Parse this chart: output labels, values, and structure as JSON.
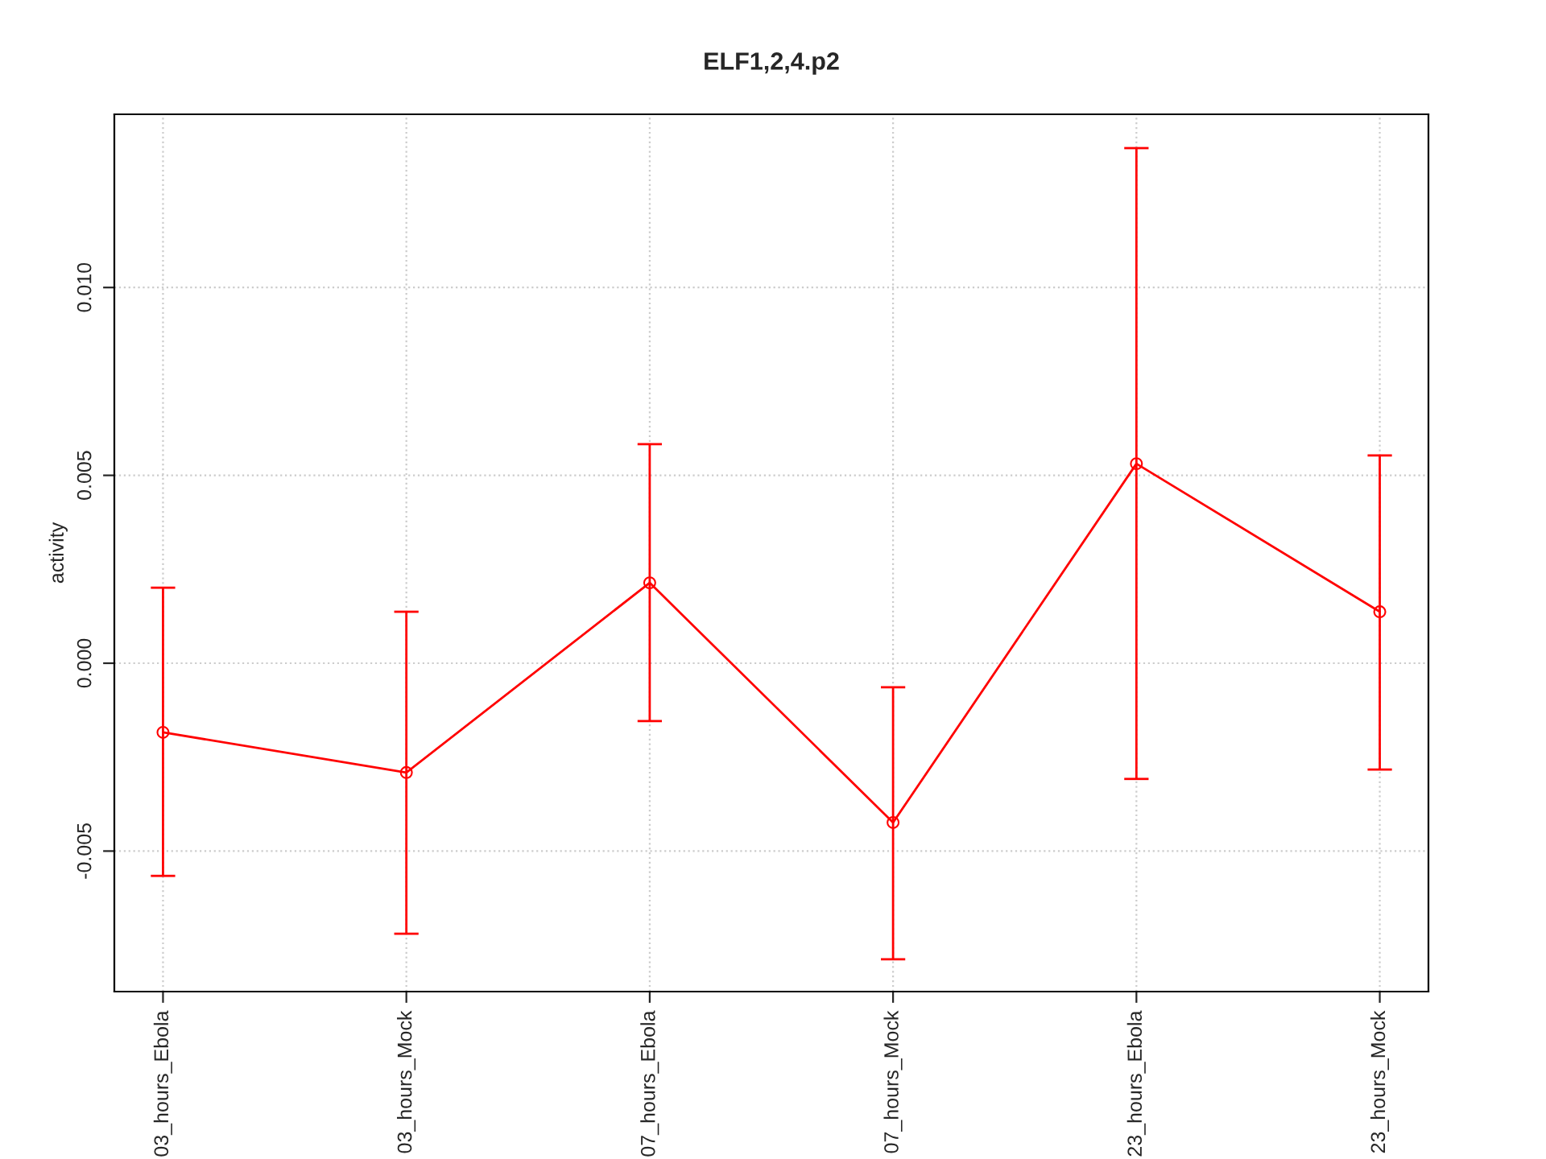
{
  "chart_data": {
    "type": "line",
    "title": "ELF1,2,4.p2",
    "ylabel": "activity",
    "categories": [
      "03_hours_Ebola",
      "03_hours_Mock",
      "07_hours_Ebola",
      "07_hours_Mock",
      "23_hours_Ebola",
      "23_hours_Mock"
    ],
    "series": [
      {
        "color": "#ff0000",
        "values": [
          -0.00184,
          -0.00291,
          0.00214,
          -0.00424,
          0.00531,
          0.00137
        ],
        "errors": [
          [
            -0.00566,
            0.00201
          ],
          [
            -0.0072,
            0.00137
          ],
          [
            -0.00154,
            0.00583
          ],
          [
            -0.00788,
            -0.00064
          ],
          [
            -0.00308,
            0.01371
          ],
          [
            -0.00283,
            0.00553
          ]
        ]
      }
    ],
    "ylim": [
      -0.00874,
      0.01461
    ],
    "yticks": [
      {
        "value": -0.005,
        "label": "-0.005"
      },
      {
        "value": 0.0,
        "label": "0.000"
      },
      {
        "value": 0.005,
        "label": "0.005"
      },
      {
        "value": 0.01,
        "label": "0.010"
      }
    ],
    "grid": true,
    "marker": "circle",
    "line_style": "solid"
  }
}
